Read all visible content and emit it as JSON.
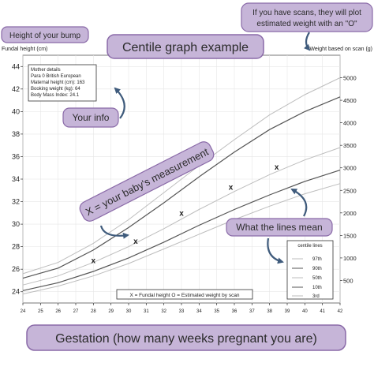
{
  "colors": {
    "callout_fill": "#c6b5d8",
    "callout_stroke": "#8a6aa8",
    "lines": "#6e6e6e",
    "grid": "#e6e6e6",
    "arrow": "#3f5b7c"
  },
  "callouts": {
    "title": "Centile graph example",
    "bump": "Height of your bump",
    "scans": "If you have scans, they will plot\nestimated weight with an \"O\"",
    "info": "Your info",
    "measurement": "X = your baby's measurement",
    "lines": "What the lines mean",
    "gestation": "Gestation (how many weeks pregnant you are)"
  },
  "mother_details": {
    "title": "Mother details",
    "lines": [
      "Para 0   British European",
      "Maternal height (cm): 163",
      "Booking weight (kg): 64",
      "Body Mass Index: 24.1"
    ]
  },
  "footer_legend": "X = Fundal height    O = Estimated weight by scan",
  "centile_legend": {
    "title": "centile lines",
    "items": [
      "97th",
      "90th",
      "50th",
      "10th",
      "3rd"
    ]
  },
  "chart_data": {
    "type": "line",
    "xlabel": "",
    "ylabel": "Fundal height (cm)",
    "y2label": "Weight based on scan (g)",
    "xlim": [
      24,
      42
    ],
    "ylim": [
      23,
      45
    ],
    "y2lim": [
      0,
      5500
    ],
    "x_ticks": [
      24,
      25,
      26,
      27,
      28,
      29,
      30,
      31,
      32,
      33,
      34,
      35,
      36,
      37,
      38,
      39,
      40,
      41,
      42
    ],
    "y_ticks": [
      24,
      26,
      28,
      30,
      32,
      34,
      36,
      38,
      40,
      42,
      44
    ],
    "y2_ticks": [
      500,
      1000,
      1500,
      2000,
      2500,
      3000,
      3500,
      4000,
      4500,
      5000
    ],
    "grid": true,
    "series": [
      {
        "name": "97th",
        "x": [
          24,
          26,
          28,
          30,
          32,
          34,
          36,
          38,
          40,
          42
        ],
        "y": [
          25.6,
          26.6,
          28.3,
          30.4,
          32.8,
          35.2,
          37.5,
          39.7,
          41.5,
          43.0
        ]
      },
      {
        "name": "90th",
        "x": [
          24,
          26,
          28,
          30,
          32,
          34,
          36,
          38,
          40,
          42
        ],
        "y": [
          25.2,
          26.1,
          27.7,
          29.7,
          31.9,
          34.2,
          36.4,
          38.4,
          40.0,
          41.3
        ]
      },
      {
        "name": "50th",
        "x": [
          24,
          26,
          28,
          30,
          32,
          34,
          36,
          38,
          40,
          42
        ],
        "y": [
          24.6,
          25.4,
          26.6,
          28.0,
          29.6,
          31.3,
          32.9,
          34.4,
          35.7,
          36.8
        ]
      },
      {
        "name": "10th",
        "x": [
          24,
          26,
          28,
          30,
          32,
          34,
          36,
          38,
          40,
          42
        ],
        "y": [
          24.1,
          24.8,
          25.8,
          27.0,
          28.4,
          29.9,
          31.3,
          32.6,
          33.8,
          34.8
        ]
      },
      {
        "name": "3rd",
        "x": [
          24,
          26,
          28,
          30,
          32,
          34,
          36,
          38,
          40,
          42
        ],
        "y": [
          23.8,
          24.5,
          25.4,
          26.5,
          27.8,
          29.1,
          30.4,
          31.6,
          32.7,
          33.6
        ]
      }
    ],
    "points": [
      {
        "x": 28.0,
        "y": 26.8
      },
      {
        "x": 30.4,
        "y": 28.5
      },
      {
        "x": 33.0,
        "y": 31.0
      },
      {
        "x": 35.8,
        "y": 33.3
      },
      {
        "x": 38.4,
        "y": 35.1
      }
    ]
  }
}
